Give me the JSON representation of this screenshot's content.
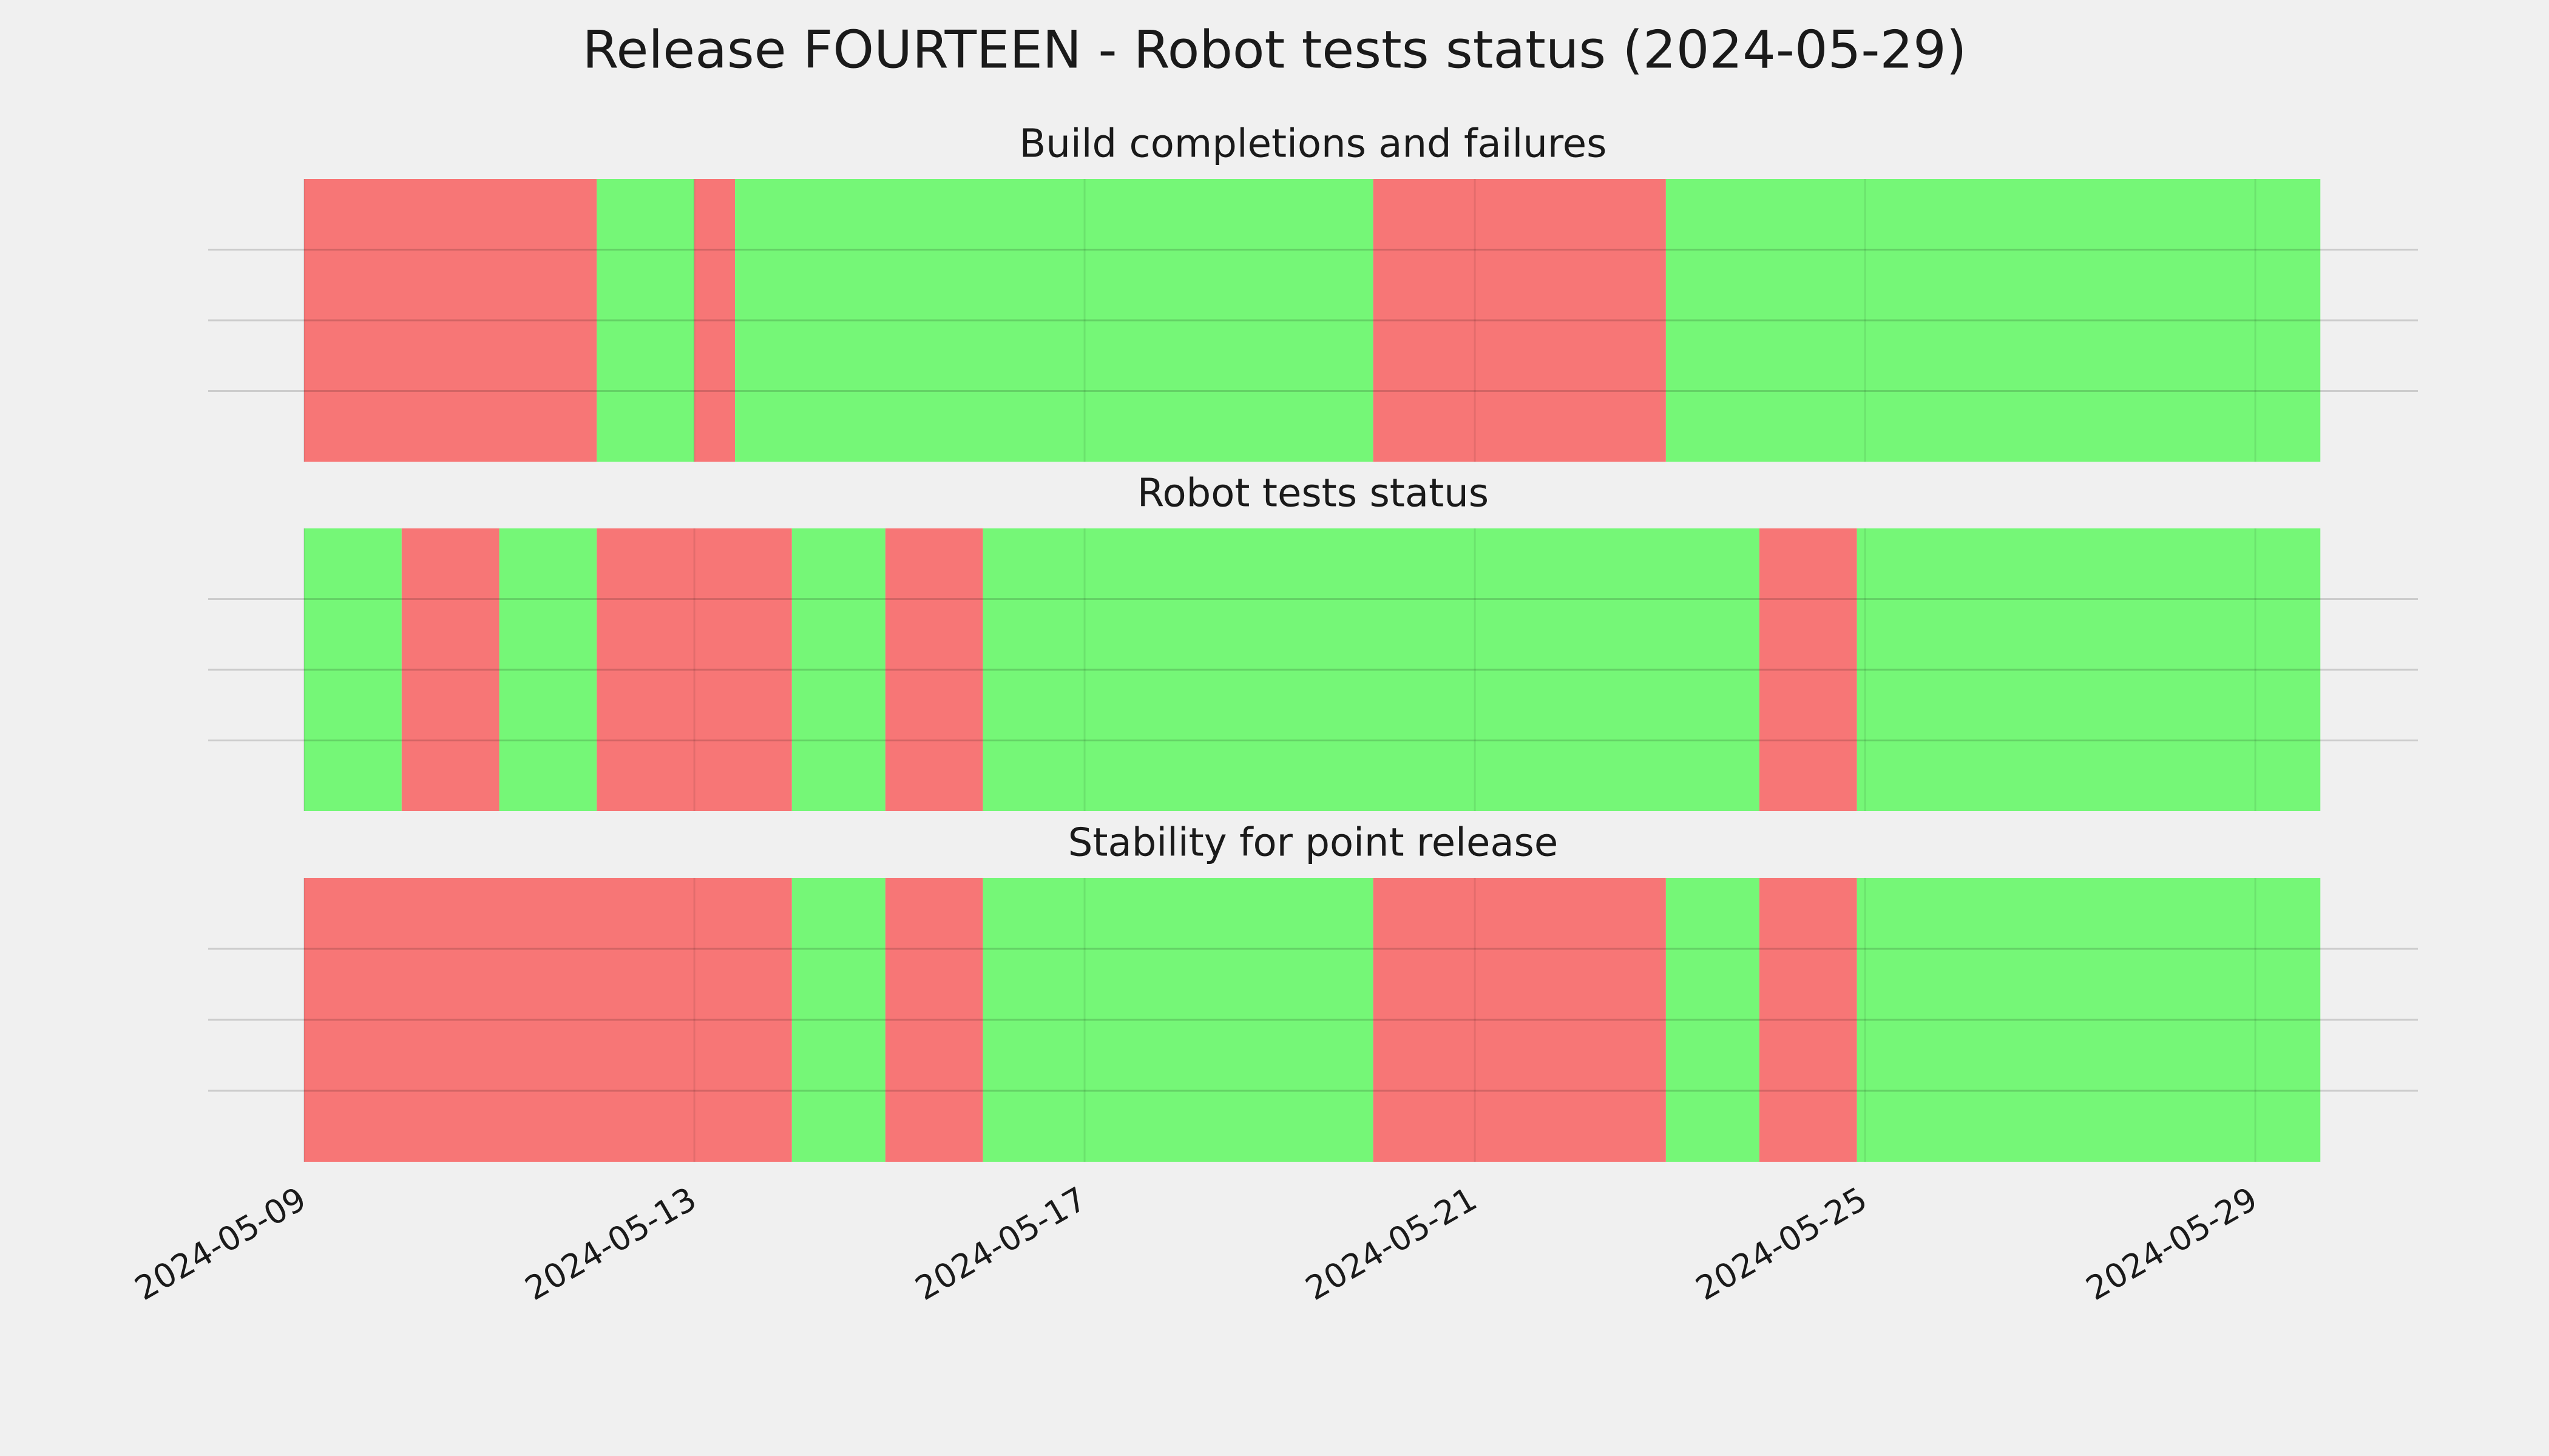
{
  "title": "Release FOURTEEN - Robot tests status (2024-05-29)",
  "xlim": [
    "2024-05-08T00:24",
    "2024-05-30T16:00"
  ],
  "xticks": [
    "2024-05-09",
    "2024-05-13",
    "2024-05-17",
    "2024-05-21",
    "2024-05-25",
    "2024-05-29"
  ],
  "chart_data": [
    {
      "type": "span",
      "title": "Build completions and failures",
      "ylim": [
        0,
        1
      ],
      "yticks": [
        0.25,
        0.5,
        0.75
      ],
      "grid": true,
      "spans": [
        {
          "start": "2024-05-09T00:00",
          "end": "2024-05-12T00:00",
          "color": "#f77676"
        },
        {
          "start": "2024-05-12T00:00",
          "end": "2024-05-13T00:00",
          "color": "#75f777"
        },
        {
          "start": "2024-05-13T00:00",
          "end": "2024-05-13T10:00",
          "color": "#f77676"
        },
        {
          "start": "2024-05-13T10:00",
          "end": "2024-05-19T23:00",
          "color": "#75f777"
        },
        {
          "start": "2024-05-19T23:00",
          "end": "2024-05-22T23:00",
          "color": "#f77676"
        },
        {
          "start": "2024-05-22T23:00",
          "end": "2024-05-29T16:00",
          "color": "#75f777"
        }
      ]
    },
    {
      "type": "span",
      "title": "Robot tests status",
      "ylim": [
        0,
        1
      ],
      "yticks": [
        0.25,
        0.5,
        0.75
      ],
      "grid": true,
      "spans": [
        {
          "start": "2024-05-09T00:00",
          "end": "2024-05-10T00:00",
          "color": "#75f777"
        },
        {
          "start": "2024-05-10T00:00",
          "end": "2024-05-11T00:00",
          "color": "#f77676"
        },
        {
          "start": "2024-05-11T00:00",
          "end": "2024-05-12T00:00",
          "color": "#75f777"
        },
        {
          "start": "2024-05-12T00:00",
          "end": "2024-05-14T00:00",
          "color": "#f77676"
        },
        {
          "start": "2024-05-14T00:00",
          "end": "2024-05-14T23:00",
          "color": "#75f777"
        },
        {
          "start": "2024-05-14T23:00",
          "end": "2024-05-15T23:00",
          "color": "#f77676"
        },
        {
          "start": "2024-05-15T23:00",
          "end": "2024-05-23T22:00",
          "color": "#75f777"
        },
        {
          "start": "2024-05-23T22:00",
          "end": "2024-05-24T22:00",
          "color": "#f77676"
        },
        {
          "start": "2024-05-24T22:00",
          "end": "2024-05-29T16:00",
          "color": "#75f777"
        }
      ]
    },
    {
      "type": "span",
      "title": "Stability for point release",
      "ylim": [
        0,
        1
      ],
      "yticks": [
        0.25,
        0.5,
        0.75
      ],
      "grid": true,
      "spans": [
        {
          "start": "2024-05-09T00:00",
          "end": "2024-05-14T00:00",
          "color": "#f77676"
        },
        {
          "start": "2024-05-14T00:00",
          "end": "2024-05-14T23:00",
          "color": "#75f777"
        },
        {
          "start": "2024-05-14T23:00",
          "end": "2024-05-15T23:00",
          "color": "#f77676"
        },
        {
          "start": "2024-05-15T23:00",
          "end": "2024-05-19T23:00",
          "color": "#75f777"
        },
        {
          "start": "2024-05-19T23:00",
          "end": "2024-05-22T23:00",
          "color": "#f77676"
        },
        {
          "start": "2024-05-22T23:00",
          "end": "2024-05-23T22:00",
          "color": "#75f777"
        },
        {
          "start": "2024-05-23T22:00",
          "end": "2024-05-24T22:00",
          "color": "#f77676"
        },
        {
          "start": "2024-05-24T22:00",
          "end": "2024-05-29T16:00",
          "color": "#75f777"
        }
      ]
    }
  ]
}
